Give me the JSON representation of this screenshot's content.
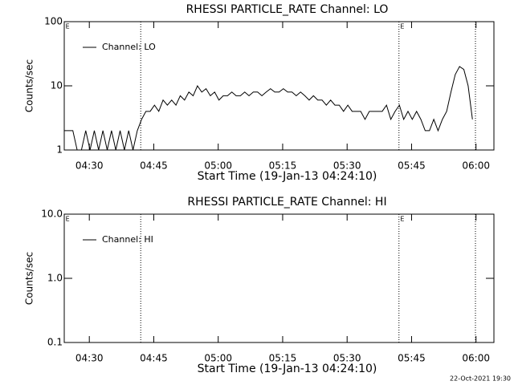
{
  "chart_data": [
    {
      "type": "line",
      "title": "RHESSI PARTICLE_RATE Channel: LO",
      "xlabel": "Start Time (19-Jan-13 04:24:10)",
      "ylabel": "Counts/sec",
      "x": [
        0,
        1,
        2,
        3,
        4,
        5,
        6,
        7,
        8,
        9,
        10,
        11,
        12,
        13,
        14,
        15,
        16,
        17,
        18,
        19,
        20,
        21,
        22,
        23,
        24,
        25,
        26,
        27,
        28,
        29,
        30,
        31,
        32,
        33,
        34,
        35,
        36,
        37,
        38,
        39,
        40,
        41,
        42,
        43,
        44,
        45,
        46,
        47,
        48,
        49,
        50,
        51,
        52,
        53,
        54,
        55,
        56,
        57,
        58,
        59,
        60,
        61,
        62,
        63,
        64,
        65,
        66,
        67,
        68,
        69,
        70,
        71,
        72,
        73,
        74,
        75,
        76,
        77,
        78,
        79,
        80,
        81,
        82,
        83,
        84,
        85,
        86,
        87,
        88,
        89,
        90,
        91,
        92,
        93,
        94,
        95
      ],
      "series": [
        {
          "name": "Channel: LO",
          "color": "#000000",
          "values": [
            2,
            2,
            2,
            1,
            1,
            2,
            1,
            2,
            1,
            2,
            1,
            2,
            1,
            2,
            1,
            2,
            1,
            2,
            3,
            4,
            4,
            5,
            4,
            6,
            5,
            6,
            5,
            7,
            6,
            8,
            7,
            10,
            8,
            9,
            7,
            8,
            6,
            7,
            7,
            8,
            7,
            7,
            8,
            7,
            8,
            8,
            7,
            8,
            9,
            8,
            8,
            9,
            8,
            8,
            7,
            8,
            7,
            6,
            7,
            6,
            6,
            5,
            6,
            5,
            5,
            4,
            5,
            4,
            4,
            4,
            3,
            4,
            4,
            4,
            4,
            5,
            3,
            4,
            5,
            3,
            4,
            3,
            4,
            3,
            2,
            2,
            3,
            2,
            3,
            4,
            8,
            15,
            20,
            18,
            10,
            3
          ]
        }
      ],
      "xlim": [
        0,
        100
      ],
      "xticks": [
        {
          "value": 5.833,
          "label": "04:30"
        },
        {
          "value": 20.833,
          "label": "04:45"
        },
        {
          "value": 35.833,
          "label": "05:00"
        },
        {
          "value": 50.833,
          "label": "05:15"
        },
        {
          "value": 65.833,
          "label": "05:30"
        },
        {
          "value": 80.833,
          "label": "05:45"
        },
        {
          "value": 95.833,
          "label": "06:00"
        }
      ],
      "ylim": [
        1,
        100
      ],
      "yticks": [
        1,
        10,
        100
      ],
      "log_scale": true,
      "legend": "upper left",
      "vlines": [
        17.8,
        77.9,
        95.7
      ],
      "annotations": [
        {
          "text": "E",
          "x": 0.3
        },
        {
          "text": "E",
          "x": 78.2
        }
      ]
    },
    {
      "type": "line",
      "title": "RHESSI PARTICLE_RATE Channel: HI",
      "xlabel": "Start Time (19-Jan-13 04:24:10)",
      "ylabel": "Counts/sec",
      "x": [],
      "series": [
        {
          "name": "Channel: HI",
          "color": "#000000",
          "values": []
        }
      ],
      "xlim": [
        0,
        100
      ],
      "xticks": [
        {
          "value": 5.833,
          "label": "04:30"
        },
        {
          "value": 20.833,
          "label": "04:45"
        },
        {
          "value": 35.833,
          "label": "05:00"
        },
        {
          "value": 50.833,
          "label": "05:15"
        },
        {
          "value": 65.833,
          "label": "05:30"
        },
        {
          "value": 80.833,
          "label": "05:45"
        },
        {
          "value": 95.833,
          "label": "06:00"
        }
      ],
      "ylim": [
        0.1,
        10
      ],
      "yticks": [
        0.1,
        {
          "value": 1,
          "label": "1.0"
        },
        {
          "value": 10,
          "label": "10.0"
        }
      ],
      "log_scale": true,
      "legend": "upper left",
      "vlines": [
        17.8,
        77.9,
        95.7
      ],
      "annotations": [
        {
          "text": "E",
          "x": 0.3
        },
        {
          "text": "E",
          "x": 78.2
        }
      ]
    }
  ],
  "footer": "22-Oct-2021 19:30"
}
